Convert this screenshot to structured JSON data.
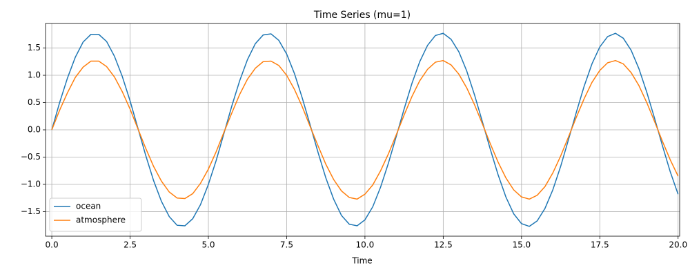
{
  "chart_data": {
    "type": "line",
    "title": "Time Series (mu=1)",
    "xlabel": "Time",
    "x": [
      0,
      0.25,
      0.5,
      0.75,
      1,
      1.25,
      1.5,
      1.75,
      2,
      2.25,
      2.5,
      2.75,
      3,
      3.25,
      3.5,
      3.75,
      4,
      4.25,
      4.5,
      4.75,
      5,
      5.25,
      5.5,
      5.75,
      6,
      6.25,
      6.5,
      6.75,
      7,
      7.25,
      7.5,
      7.75,
      8,
      8.25,
      8.5,
      8.75,
      9,
      9.25,
      9.5,
      9.75,
      10,
      10.25,
      10.5,
      10.75,
      11,
      11.25,
      11.5,
      11.75,
      12,
      12.25,
      12.5,
      12.75,
      13,
      13.25,
      13.5,
      13.75,
      14,
      14.25,
      14.5,
      14.75,
      15,
      15.25,
      15.5,
      15.75,
      16,
      16.25,
      16.5,
      16.75,
      17,
      17.25,
      17.5,
      17.75,
      18,
      18.25,
      18.5,
      18.75,
      19,
      19.25,
      19.5,
      19.75,
      20
    ],
    "series": [
      {
        "name": "ocean",
        "color": "#1f77b4",
        "values": [
          0,
          0.5,
          0.95,
          1.33,
          1.61,
          1.75,
          1.75,
          1.62,
          1.35,
          0.98,
          0.53,
          0.03,
          -0.47,
          -0.93,
          -1.31,
          -1.59,
          -1.75,
          -1.76,
          -1.63,
          -1.37,
          -1.0,
          -0.56,
          -0.06,
          0.44,
          0.9,
          1.29,
          1.58,
          1.74,
          1.76,
          1.64,
          1.39,
          1.03,
          0.58,
          0.09,
          -0.41,
          -0.88,
          -1.27,
          -1.57,
          -1.73,
          -1.76,
          -1.65,
          -1.41,
          -1.05,
          -0.61,
          -0.12,
          0.38,
          0.85,
          1.25,
          1.55,
          1.73,
          1.77,
          1.66,
          1.43,
          1.08,
          0.64,
          0.15,
          -0.35,
          -0.82,
          -1.23,
          -1.54,
          -1.72,
          -1.77,
          -1.67,
          -1.44,
          -1.1,
          -0.67,
          -0.18,
          0.32,
          0.8,
          1.21,
          1.52,
          1.71,
          1.77,
          1.68,
          1.46,
          1.12,
          0.69,
          0.21,
          -0.29,
          -0.77,
          -1.18
        ]
      },
      {
        "name": "atmosphere",
        "color": "#ff7f0e",
        "values": [
          0,
          0.36,
          0.68,
          0.96,
          1.15,
          1.26,
          1.26,
          1.16,
          0.97,
          0.7,
          0.38,
          0.02,
          -0.34,
          -0.67,
          -0.94,
          -1.14,
          -1.25,
          -1.26,
          -1.17,
          -0.98,
          -0.72,
          -0.4,
          -0.04,
          0.31,
          0.65,
          0.93,
          1.13,
          1.25,
          1.26,
          1.18,
          1.0,
          0.74,
          0.42,
          0.06,
          -0.29,
          -0.63,
          -0.91,
          -1.12,
          -1.24,
          -1.27,
          -1.18,
          -1.01,
          -0.75,
          -0.44,
          -0.09,
          0.27,
          0.61,
          0.9,
          1.11,
          1.24,
          1.27,
          1.19,
          1.02,
          0.77,
          0.46,
          0.11,
          -0.25,
          -0.59,
          -0.88,
          -1.1,
          -1.23,
          -1.27,
          -1.2,
          -1.04,
          -0.79,
          -0.48,
          -0.13,
          0.23,
          0.57,
          0.87,
          1.09,
          1.23,
          1.27,
          1.21,
          1.05,
          0.81,
          0.5,
          0.15,
          -0.21,
          -0.55,
          -0.85
        ]
      }
    ],
    "xlim": [
      -0.2,
      20.05
    ],
    "ylim": [
      -1.95,
      1.95
    ],
    "xticks": [
      {
        "value": 0,
        "label": "0.0"
      },
      {
        "value": 2.5,
        "label": "2.5"
      },
      {
        "value": 5,
        "label": "5.0"
      },
      {
        "value": 7.5,
        "label": "7.5"
      },
      {
        "value": 10,
        "label": "10.0"
      },
      {
        "value": 12.5,
        "label": "12.5"
      },
      {
        "value": 15,
        "label": "15.0"
      },
      {
        "value": 17.5,
        "label": "17.5"
      },
      {
        "value": 20,
        "label": "20.0"
      }
    ],
    "yticks": [
      {
        "value": -1.5,
        "label": "−1.5"
      },
      {
        "value": -1,
        "label": "−1.0"
      },
      {
        "value": -0.5,
        "label": "−0.5"
      },
      {
        "value": 0,
        "label": "0.0"
      },
      {
        "value": 0.5,
        "label": "0.5"
      },
      {
        "value": 1,
        "label": "1.0"
      },
      {
        "value": 1.5,
        "label": "1.5"
      }
    ],
    "grid": true,
    "legend": "lower left"
  }
}
